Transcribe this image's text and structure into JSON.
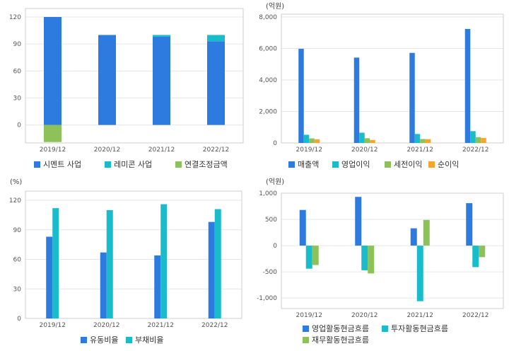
{
  "colors": {
    "blue": "#2E7BE0",
    "cyan": "#19BCCB",
    "green": "#8DC15A",
    "orange": "#F5A52A",
    "grid": "#e6e6e6",
    "frame": "#cfcfcf"
  },
  "chart_data": [
    {
      "type": "bar",
      "stacked": true,
      "unit": "",
      "categories": [
        "2019/12",
        "2020/12",
        "2021/12",
        "2022/12"
      ],
      "ylim": [
        -20,
        120
      ],
      "yticks": [
        0,
        30,
        60,
        90,
        120
      ],
      "series": [
        {
          "name": "시멘트 사업",
          "values": [
            120,
            100,
            98,
            93
          ],
          "color": "blue"
        },
        {
          "name": "레미콘 사업",
          "values": [
            0,
            0,
            2,
            7
          ],
          "color": "cyan"
        },
        {
          "name": "연결조정금액",
          "values": [
            -19,
            0,
            0,
            0
          ],
          "color": "green"
        }
      ],
      "grid": true,
      "legend": "bottom"
    },
    {
      "type": "bar",
      "unit": "(억원)",
      "categories": [
        "2019/12",
        "2020/12",
        "2021/12",
        "2022/12"
      ],
      "ylim": [
        0,
        8000
      ],
      "yticks": [
        0,
        2000,
        4000,
        6000,
        8000
      ],
      "series": [
        {
          "name": "매출액",
          "values": [
            5980,
            5420,
            5720,
            7240
          ],
          "color": "blue"
        },
        {
          "name": "영업이익",
          "values": [
            520,
            650,
            570,
            750
          ],
          "color": "cyan"
        },
        {
          "name": "세전이익",
          "values": [
            290,
            300,
            250,
            370
          ],
          "color": "green"
        },
        {
          "name": "순이익",
          "values": [
            230,
            190,
            240,
            320
          ],
          "color": "orange"
        }
      ],
      "grid": true,
      "legend": "bottom"
    },
    {
      "type": "bar",
      "unit": "(%)",
      "categories": [
        "2019/12",
        "2020/12",
        "2021/12",
        "2022/12"
      ],
      "ylim": [
        0,
        120
      ],
      "yticks": [
        0,
        30,
        60,
        90,
        120
      ],
      "series": [
        {
          "name": "유동비율",
          "values": [
            83,
            67,
            64,
            98
          ],
          "color": "blue"
        },
        {
          "name": "부채비율",
          "values": [
            112,
            110,
            116,
            111
          ],
          "color": "cyan"
        }
      ],
      "grid": true,
      "legend": "bottom"
    },
    {
      "type": "bar",
      "unit": "(억원)",
      "categories": [
        "2019/12",
        "2020/12",
        "2021/12",
        "2022/12"
      ],
      "ylim": [
        -1200,
        1000
      ],
      "yticks": [
        -1000,
        -500,
        0,
        500,
        1000
      ],
      "series": [
        {
          "name": "영업활동현금흐름",
          "values": [
            680,
            930,
            330,
            810
          ],
          "color": "blue"
        },
        {
          "name": "투자활동현금흐름",
          "values": [
            -440,
            -470,
            -1060,
            -410
          ],
          "color": "cyan"
        },
        {
          "name": "재무활동현금흐름",
          "values": [
            -370,
            -530,
            490,
            -220
          ],
          "color": "green"
        }
      ],
      "grid": true,
      "legend": "bottom"
    }
  ]
}
